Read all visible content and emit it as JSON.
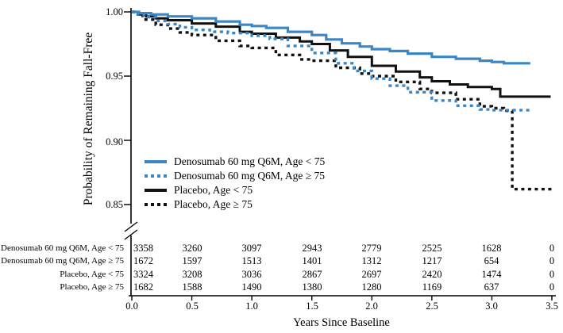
{
  "colors": {
    "denosumab_blue": "#3b87c6",
    "placebo_black": "#111111",
    "background": "#ffffff"
  },
  "chart_data": {
    "type": "line",
    "subtype": "kaplan-meier-step",
    "title": "",
    "xlabel": "Years Since Baseline",
    "ylabel": "Probability of Remaining Fall-Free",
    "xlim": [
      0,
      3.5
    ],
    "ylim": [
      0.85,
      1.0
    ],
    "y_axis_break_below": 0.85,
    "grid": false,
    "legend_position": "inside-left-middle",
    "x_tick_labels": [
      "0.0",
      "0.5",
      "1.0",
      "1.5",
      "2.0",
      "2.5",
      "3.0",
      "3.5"
    ],
    "x_tick_values": [
      0,
      0.5,
      1,
      1.5,
      2,
      2.5,
      3,
      3.5
    ],
    "y_tick_labels": [
      "1.00",
      "0.95",
      "0.90",
      "0.85"
    ],
    "y_tick_values": [
      1,
      0.95,
      0.9,
      0.85
    ],
    "series": [
      {
        "name": "Denosumab 60 mg Q6M, Age < 75",
        "color": "#3b87c6",
        "line_style": "solid",
        "width": 3.2,
        "dash": "",
        "points": [
          [
            0,
            1.0
          ],
          [
            0.06,
            0.999
          ],
          [
            0.16,
            0.998
          ],
          [
            0.3,
            0.9965
          ],
          [
            0.5,
            0.995
          ],
          [
            0.7,
            0.9925
          ],
          [
            0.9,
            0.99
          ],
          [
            1.0,
            0.989
          ],
          [
            1.12,
            0.9875
          ],
          [
            1.3,
            0.9845
          ],
          [
            1.5,
            0.982
          ],
          [
            1.62,
            0.9785
          ],
          [
            1.75,
            0.9755
          ],
          [
            1.9,
            0.973
          ],
          [
            2.0,
            0.971
          ],
          [
            2.15,
            0.9695
          ],
          [
            2.3,
            0.9675
          ],
          [
            2.5,
            0.965
          ],
          [
            2.7,
            0.9635
          ],
          [
            2.9,
            0.962
          ],
          [
            3.0,
            0.961
          ],
          [
            3.1,
            0.96
          ],
          [
            3.32,
            0.96
          ]
        ]
      },
      {
        "name": "Denosumab 60 mg Q6M, Age ≥ 75",
        "color": "#3b87c6",
        "line_style": "dotted",
        "width": 3.4,
        "dash": "4 4.5",
        "points": [
          [
            0,
            1.0
          ],
          [
            0.05,
            0.998
          ],
          [
            0.1,
            0.996
          ],
          [
            0.2,
            0.993
          ],
          [
            0.3,
            0.9905
          ],
          [
            0.4,
            0.988
          ],
          [
            0.5,
            0.986
          ],
          [
            0.65,
            0.9845
          ],
          [
            0.8,
            0.9835
          ],
          [
            1.0,
            0.9815
          ],
          [
            1.15,
            0.979
          ],
          [
            1.3,
            0.9735
          ],
          [
            1.5,
            0.968
          ],
          [
            1.7,
            0.96
          ],
          [
            1.85,
            0.954
          ],
          [
            2.0,
            0.948
          ],
          [
            2.15,
            0.9425
          ],
          [
            2.3,
            0.9375
          ],
          [
            2.5,
            0.931
          ],
          [
            2.7,
            0.927
          ],
          [
            2.9,
            0.924
          ],
          [
            3.0,
            0.9235
          ],
          [
            3.33,
            0.9235
          ]
        ]
      },
      {
        "name": "Placebo, Age < 75",
        "color": "#111111",
        "line_style": "solid",
        "width": 3.0,
        "dash": "",
        "points": [
          [
            0,
            1.0
          ],
          [
            0.05,
            0.998
          ],
          [
            0.12,
            0.9965
          ],
          [
            0.2,
            0.995
          ],
          [
            0.3,
            0.9935
          ],
          [
            0.5,
            0.991
          ],
          [
            0.7,
            0.9885
          ],
          [
            0.9,
            0.9845
          ],
          [
            1.0,
            0.983
          ],
          [
            1.2,
            0.98
          ],
          [
            1.4,
            0.977
          ],
          [
            1.5,
            0.975
          ],
          [
            1.65,
            0.97
          ],
          [
            1.8,
            0.965
          ],
          [
            2.0,
            0.958
          ],
          [
            2.2,
            0.9535
          ],
          [
            2.4,
            0.949
          ],
          [
            2.5,
            0.946
          ],
          [
            2.65,
            0.9435
          ],
          [
            2.8,
            0.9415
          ],
          [
            3.0,
            0.94
          ],
          [
            3.07,
            0.934
          ],
          [
            3.49,
            0.934
          ]
        ]
      },
      {
        "name": "Placebo, Age ≥ 75",
        "color": "#111111",
        "line_style": "dotted",
        "width": 3.4,
        "dash": "4 4.5",
        "points": [
          [
            0,
            1.0
          ],
          [
            0.05,
            0.997
          ],
          [
            0.1,
            0.994
          ],
          [
            0.2,
            0.99
          ],
          [
            0.3,
            0.987
          ],
          [
            0.4,
            0.984
          ],
          [
            0.5,
            0.982
          ],
          [
            0.7,
            0.9775
          ],
          [
            0.9,
            0.9735
          ],
          [
            1.0,
            0.972
          ],
          [
            1.2,
            0.9665
          ],
          [
            1.4,
            0.963
          ],
          [
            1.5,
            0.962
          ],
          [
            1.7,
            0.9565
          ],
          [
            1.9,
            0.952
          ],
          [
            2.0,
            0.95
          ],
          [
            2.2,
            0.9455
          ],
          [
            2.4,
            0.94
          ],
          [
            2.5,
            0.937
          ],
          [
            2.7,
            0.932
          ],
          [
            2.9,
            0.9265
          ],
          [
            3.0,
            0.925
          ],
          [
            3.1,
            0.923
          ],
          [
            3.17,
            0.922
          ],
          [
            3.17,
            0.862
          ],
          [
            3.5,
            0.862
          ]
        ]
      }
    ],
    "risk_table": {
      "x_values": [
        0,
        0.5,
        1,
        1.5,
        2,
        2.5,
        3,
        3.5
      ],
      "rows": [
        {
          "label": "Denosumab 60 mg Q6M, Age < 75",
          "counts": [
            3358,
            3260,
            3097,
            2943,
            2779,
            2525,
            1628,
            0
          ]
        },
        {
          "label": "Denosumab 60 mg Q6M, Age ≥ 75",
          "counts": [
            1672,
            1597,
            1513,
            1401,
            1312,
            1217,
            654,
            0
          ]
        },
        {
          "label": "Placebo, Age < 75",
          "counts": [
            3324,
            3208,
            3036,
            2867,
            2697,
            2420,
            1474,
            0
          ]
        },
        {
          "label": "Placebo, Age ≥ 75",
          "counts": [
            1682,
            1588,
            1490,
            1380,
            1280,
            1169,
            637,
            0
          ]
        }
      ]
    }
  }
}
